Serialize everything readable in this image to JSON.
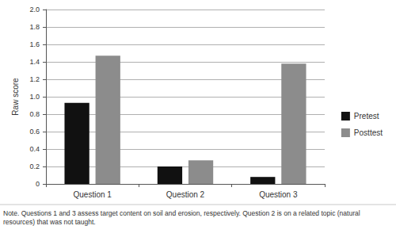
{
  "chart_data": {
    "type": "bar",
    "categories": [
      "Question 1",
      "Question 2",
      "Question 3"
    ],
    "series": [
      {
        "name": "Pretest",
        "color": "#111111",
        "values": [
          0.93,
          0.2,
          0.08
        ]
      },
      {
        "name": "Posttest",
        "color": "#8c8c8c",
        "values": [
          1.47,
          0.27,
          1.38
        ]
      }
    ],
    "ylabel": "Raw score",
    "ylim": [
      0,
      2
    ],
    "yticks": [
      0,
      0.2,
      0.4,
      0.6,
      0.8,
      {
        "value": 1,
        "label": "1.0"
      },
      1.2,
      1.4,
      1.6,
      1.8,
      {
        "value": 2,
        "label": "2.0"
      }
    ],
    "grid": true,
    "legend": "right",
    "annotations": [
      "Note. Questions 1 and 3 assess target content on soil and erosion, respectively. Question 2 is on a related topic (natural resources) that was not taught."
    ]
  }
}
